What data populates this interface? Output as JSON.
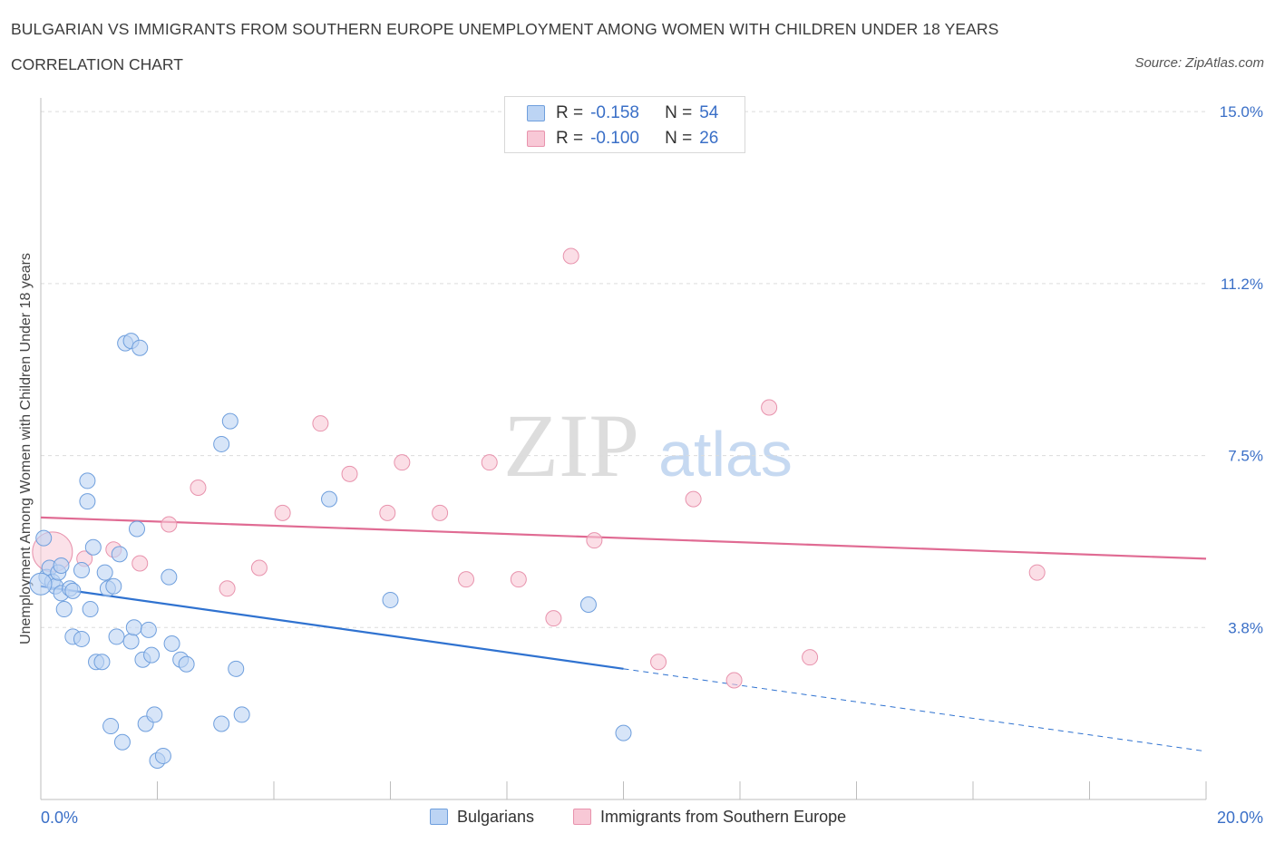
{
  "header": {
    "title": "BULGARIAN VS IMMIGRANTS FROM SOUTHERN EUROPE UNEMPLOYMENT AMONG WOMEN WITH CHILDREN UNDER 18 YEARS",
    "subtitle": "CORRELATION CHART",
    "source": "Source: ZipAtlas.com"
  },
  "watermark": {
    "zip": "ZIP",
    "atlas": "atlas"
  },
  "colors": {
    "blue_fill": "#bcd4f4",
    "blue_stroke": "#6f9fdd",
    "blue_line": "#2f72d0",
    "pink_fill": "#f8c8d6",
    "pink_stroke": "#e893ad",
    "pink_line": "#e06b93",
    "axis_label": "#3a6fc7"
  },
  "legend_top": [
    {
      "r_label": "R =",
      "r_value": "-0.158",
      "n_label": "N =",
      "n_value": "54"
    },
    {
      "r_label": "R =",
      "r_value": "-0.100",
      "n_label": "N =",
      "n_value": "26"
    }
  ],
  "legend_bottom": [
    "Bulgarians",
    "Immigrants from Southern Europe"
  ],
  "chart_data": {
    "type": "scatter",
    "ylabel": "Unemployment Among Women with Children Under 18 years",
    "x_tick_labels": {
      "min": "0.0%",
      "max": "20.0%"
    },
    "y_tick_labels": [
      "15.0%",
      "11.2%",
      "7.5%",
      "3.8%"
    ],
    "y_ticks": [
      15.0,
      11.25,
      7.5,
      3.75
    ],
    "xlim": [
      0,
      20
    ],
    "ylim": [
      0,
      15.3
    ],
    "grid": true,
    "series": [
      {
        "name": "Bulgarians",
        "trend": {
          "x0": 0,
          "y0": 4.65,
          "x1": 10,
          "y1": 2.85,
          "dashed_to_x": 20,
          "dashed_to_y": 1.05
        },
        "points": [
          [
            0.05,
            5.7
          ],
          [
            0.1,
            4.85
          ],
          [
            0.15,
            5.05
          ],
          [
            0.2,
            4.75
          ],
          [
            0.25,
            4.65
          ],
          [
            0.3,
            4.95
          ],
          [
            0.35,
            5.1
          ],
          [
            0.35,
            4.5
          ],
          [
            0.4,
            4.15
          ],
          [
            0.5,
            4.6
          ],
          [
            0.55,
            4.55
          ],
          [
            0.55,
            3.55
          ],
          [
            0.7,
            3.5
          ],
          [
            0.7,
            5.0
          ],
          [
            0.8,
            6.95
          ],
          [
            0.8,
            6.5
          ],
          [
            0.85,
            4.15
          ],
          [
            0.9,
            5.5
          ],
          [
            0.95,
            3.0
          ],
          [
            1.05,
            3.0
          ],
          [
            1.1,
            4.95
          ],
          [
            1.15,
            4.6
          ],
          [
            1.2,
            1.6
          ],
          [
            1.25,
            4.65
          ],
          [
            1.3,
            3.55
          ],
          [
            1.35,
            5.35
          ],
          [
            1.4,
            1.25
          ],
          [
            1.45,
            9.95
          ],
          [
            1.55,
            10.0
          ],
          [
            1.55,
            3.45
          ],
          [
            1.6,
            3.75
          ],
          [
            1.65,
            5.9
          ],
          [
            1.7,
            9.85
          ],
          [
            1.75,
            3.05
          ],
          [
            1.8,
            1.65
          ],
          [
            1.85,
            3.7
          ],
          [
            1.9,
            3.15
          ],
          [
            1.95,
            1.85
          ],
          [
            2.0,
            0.85
          ],
          [
            2.1,
            0.95
          ],
          [
            2.2,
            4.85
          ],
          [
            2.25,
            3.4
          ],
          [
            2.4,
            3.05
          ],
          [
            2.5,
            2.95
          ],
          [
            3.1,
            7.75
          ],
          [
            3.1,
            1.65
          ],
          [
            3.25,
            8.25
          ],
          [
            3.35,
            2.85
          ],
          [
            3.45,
            1.85
          ],
          [
            4.95,
            6.55
          ],
          [
            6.0,
            4.35
          ],
          [
            9.4,
            4.25
          ],
          [
            10.0,
            1.45
          ],
          [
            0.0,
            4.7
          ]
        ]
      },
      {
        "name": "Immigrants from Southern Europe",
        "trend": {
          "x0": 0,
          "y0": 6.15,
          "x1": 20,
          "y1": 5.25
        },
        "points": [
          [
            0.2,
            5.4
          ],
          [
            0.75,
            5.25
          ],
          [
            1.25,
            5.45
          ],
          [
            1.7,
            5.15
          ],
          [
            2.2,
            6.0
          ],
          [
            2.7,
            6.8
          ],
          [
            3.2,
            4.6
          ],
          [
            3.75,
            5.05
          ],
          [
            4.15,
            6.25
          ],
          [
            4.8,
            8.2
          ],
          [
            5.3,
            7.1
          ],
          [
            5.95,
            6.25
          ],
          [
            6.2,
            7.35
          ],
          [
            6.85,
            6.25
          ],
          [
            7.3,
            4.8
          ],
          [
            7.7,
            7.35
          ],
          [
            8.2,
            4.8
          ],
          [
            8.8,
            3.95
          ],
          [
            9.1,
            11.85
          ],
          [
            9.5,
            5.65
          ],
          [
            10.6,
            3.0
          ],
          [
            11.2,
            6.55
          ],
          [
            11.9,
            2.6
          ],
          [
            12.5,
            8.55
          ],
          [
            13.2,
            3.1
          ],
          [
            17.1,
            4.95
          ]
        ]
      }
    ]
  }
}
